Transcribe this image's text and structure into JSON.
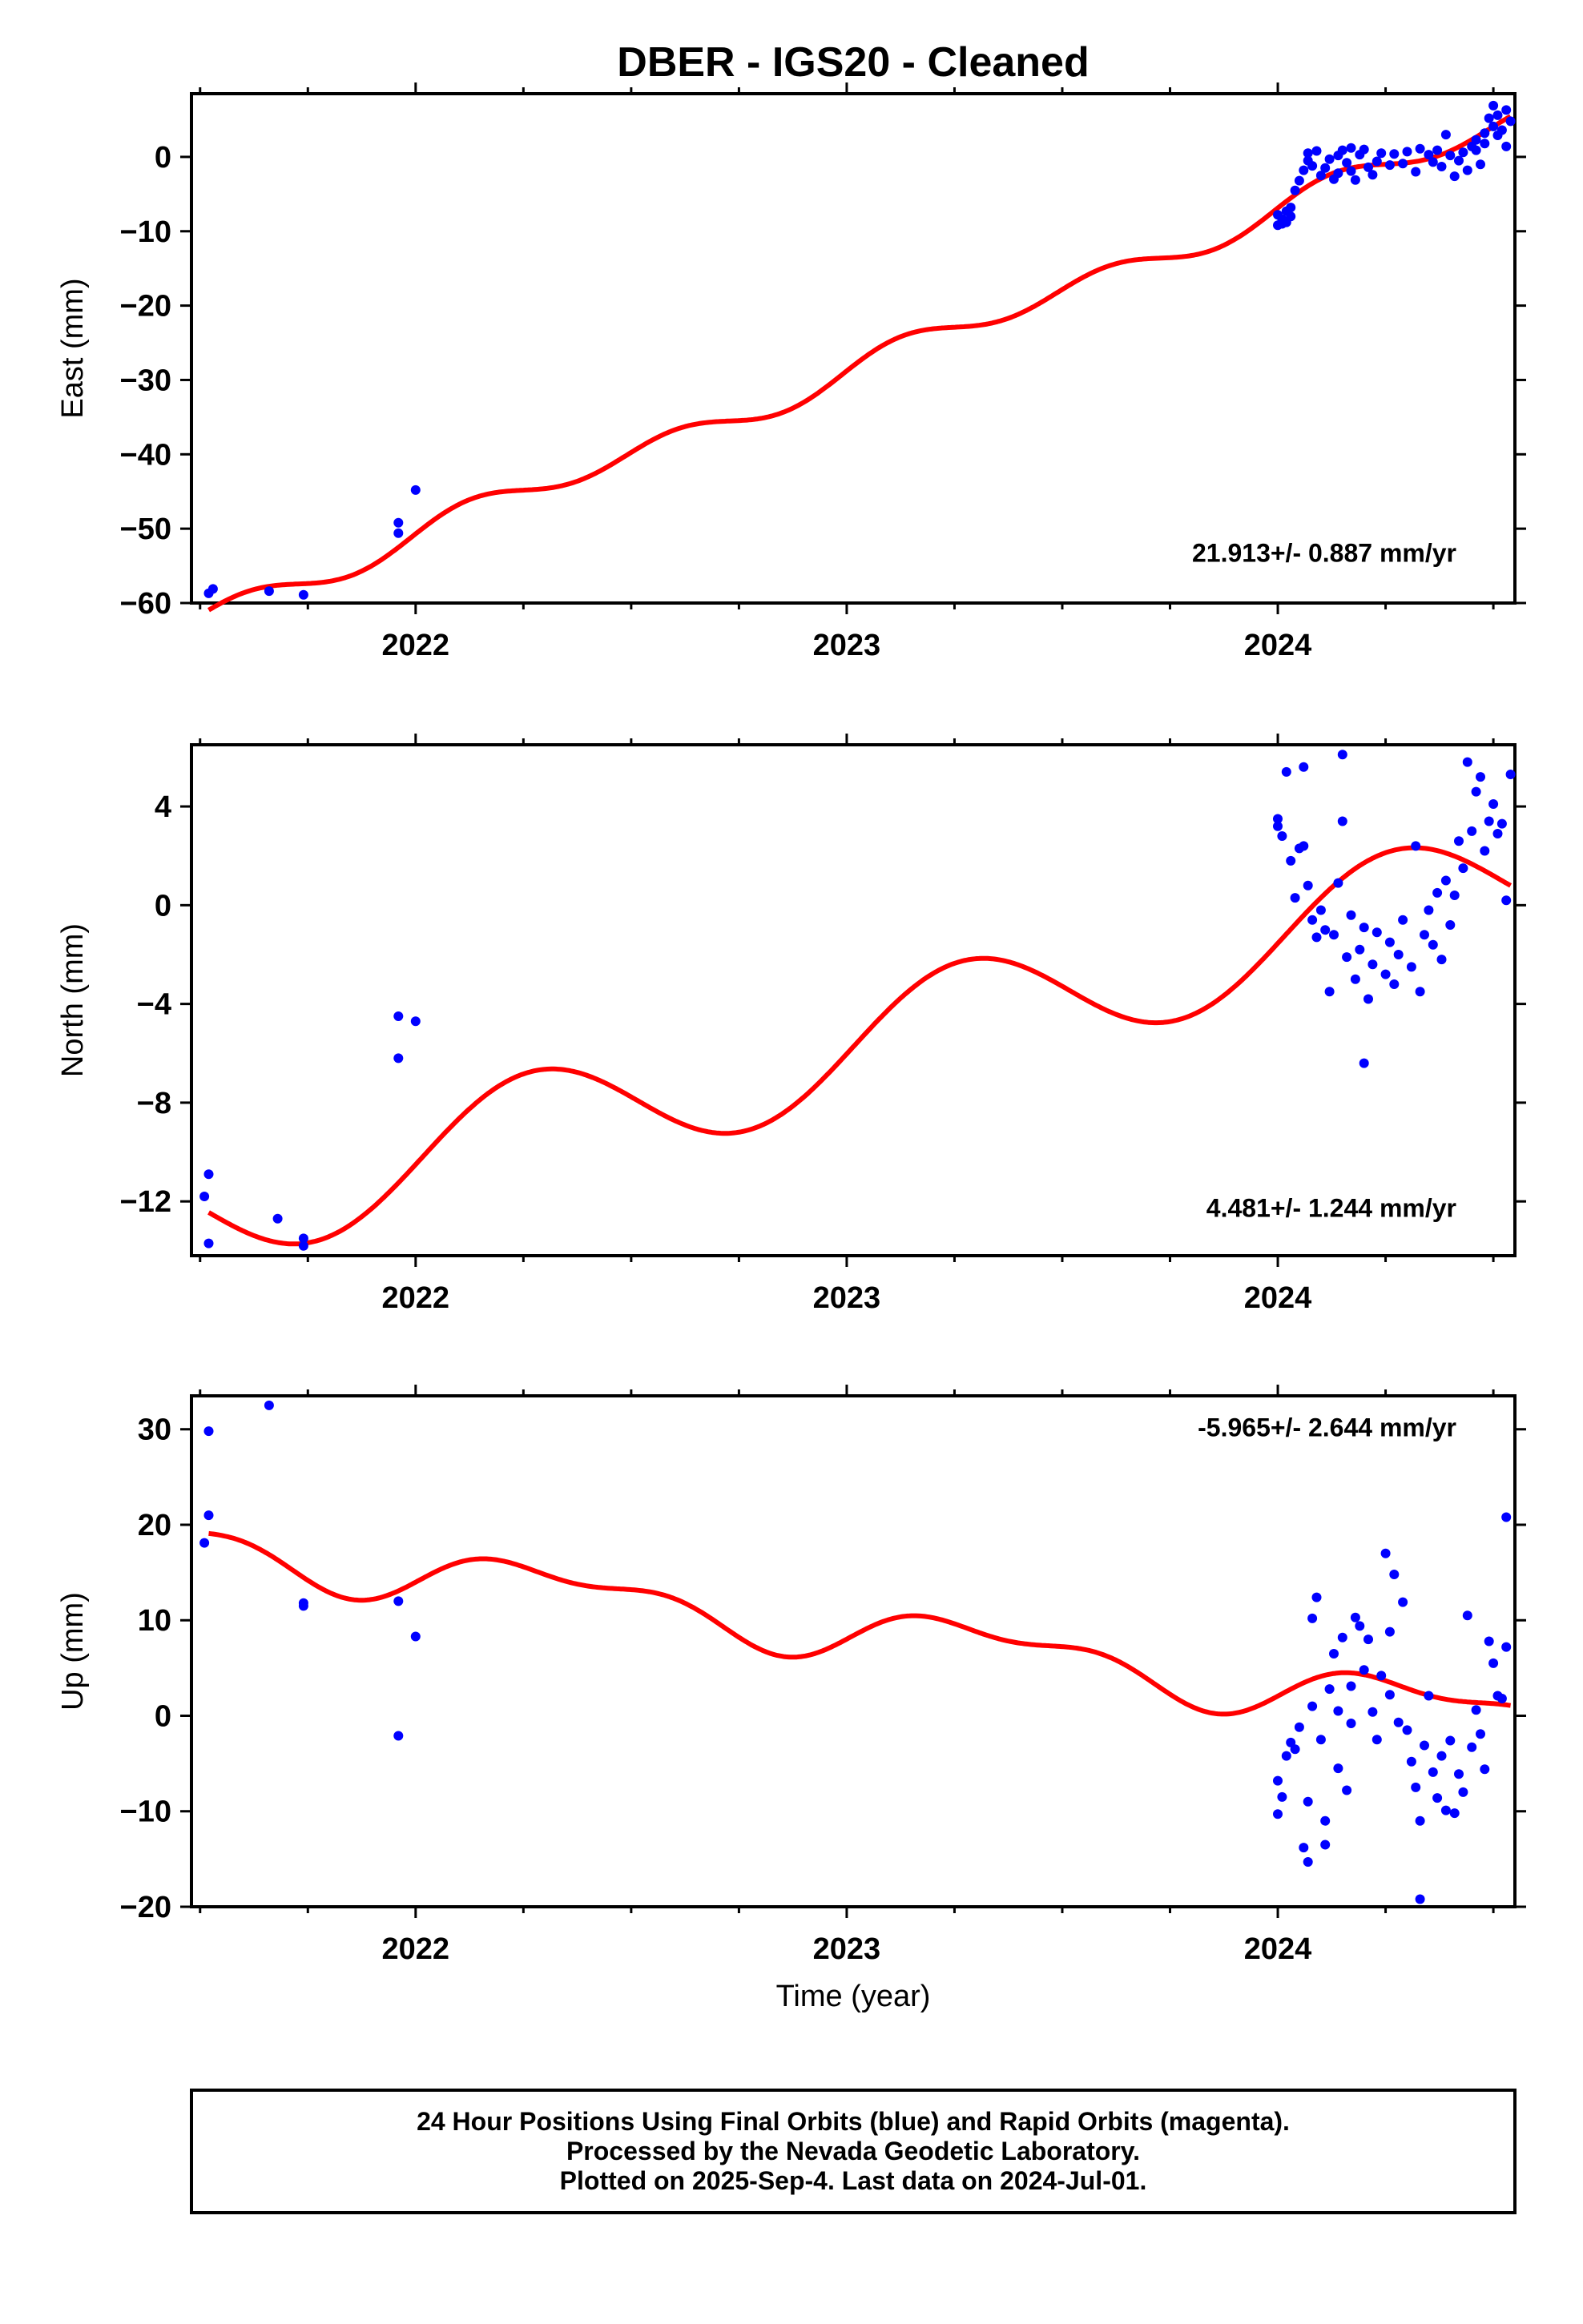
{
  "chart_data": [
    {
      "type": "scatter",
      "panel": "east",
      "title": "DBER  - IGS20 - Cleaned",
      "ylabel": "East (mm)",
      "xlabel": "",
      "xlim": [
        2021.48,
        2024.55
      ],
      "ylim": [
        -60,
        8.5
      ],
      "xticks": [
        2022,
        2023,
        2024
      ],
      "yticks": [
        -60,
        -50,
        -40,
        -30,
        -20,
        -10,
        0
      ],
      "rate": "21.913+/- 0.887 mm/yr",
      "series": [
        {
          "name": "Final Orbits",
          "color": "#0000ff",
          "points": [
            [
              2021.52,
              -58.7
            ],
            [
              2021.53,
              -58.1
            ],
            [
              2021.66,
              -58.4
            ],
            [
              2021.74,
              -58.9
            ],
            [
              2021.96,
              -49.2
            ],
            [
              2021.96,
              -50.6
            ],
            [
              2022.0,
              -44.8
            ],
            [
              2024.0,
              -9.2
            ],
            [
              2024.0,
              -7.8
            ],
            [
              2024.01,
              -8.4
            ],
            [
              2024.01,
              -9.0
            ],
            [
              2024.02,
              -7.3
            ],
            [
              2024.02,
              -8.8
            ],
            [
              2024.03,
              -8.0
            ],
            [
              2024.03,
              -6.8
            ],
            [
              2024.04,
              -4.5
            ],
            [
              2024.05,
              -3.2
            ],
            [
              2024.06,
              -1.8
            ],
            [
              2024.07,
              -0.5
            ],
            [
              2024.07,
              0.5
            ],
            [
              2024.08,
              -1.2
            ],
            [
              2024.09,
              0.8
            ],
            [
              2024.1,
              -2.5
            ],
            [
              2024.11,
              -1.5
            ],
            [
              2024.12,
              -0.3
            ],
            [
              2024.13,
              -3.0
            ],
            [
              2024.14,
              -2.2
            ],
            [
              2024.14,
              0.2
            ],
            [
              2024.15,
              0.9
            ],
            [
              2024.16,
              -0.8
            ],
            [
              2024.17,
              1.2
            ],
            [
              2024.17,
              -1.9
            ],
            [
              2024.18,
              -3.1
            ],
            [
              2024.19,
              0.3
            ],
            [
              2024.2,
              1.0
            ],
            [
              2024.21,
              -1.4
            ],
            [
              2024.22,
              -2.4
            ],
            [
              2024.23,
              -0.6
            ],
            [
              2024.24,
              0.5
            ],
            [
              2024.26,
              -1.1
            ],
            [
              2024.27,
              0.4
            ],
            [
              2024.29,
              -0.9
            ],
            [
              2024.3,
              0.7
            ],
            [
              2024.32,
              -2.0
            ],
            [
              2024.33,
              1.1
            ],
            [
              2024.35,
              0.3
            ],
            [
              2024.36,
              -0.7
            ],
            [
              2024.37,
              0.9
            ],
            [
              2024.38,
              -1.3
            ],
            [
              2024.39,
              3.0
            ],
            [
              2024.4,
              0.2
            ],
            [
              2024.41,
              -2.6
            ],
            [
              2024.42,
              -0.5
            ],
            [
              2024.43,
              0.6
            ],
            [
              2024.44,
              -1.8
            ],
            [
              2024.45,
              1.4
            ],
            [
              2024.46,
              2.3
            ],
            [
              2024.46,
              0.9
            ],
            [
              2024.47,
              -1.0
            ],
            [
              2024.48,
              3.2
            ],
            [
              2024.48,
              1.8
            ],
            [
              2024.49,
              5.2
            ],
            [
              2024.5,
              4.1
            ],
            [
              2024.5,
              6.9
            ],
            [
              2024.51,
              2.9
            ],
            [
              2024.51,
              5.6
            ],
            [
              2024.52,
              3.6
            ],
            [
              2024.53,
              6.3
            ],
            [
              2024.53,
              1.4
            ],
            [
              2024.54,
              4.8
            ]
          ]
        },
        {
          "name": "Model",
          "color": "#ff0000",
          "kind": "fit",
          "trend_mm_yr": 21.913,
          "offset_mm": -0.5,
          "t0": 2024.3,
          "terms": [
            [
              0.8,
              0.0
            ],
            [
              1.5,
              0.2
            ]
          ]
        }
      ]
    },
    {
      "type": "scatter",
      "panel": "north",
      "ylabel": "North (mm)",
      "xlabel": "",
      "xlim": [
        2021.48,
        2024.55
      ],
      "ylim": [
        -14.2,
        6.5
      ],
      "xticks": [
        2022,
        2023,
        2024
      ],
      "yticks": [
        -12,
        -8,
        -4,
        0,
        4
      ],
      "rate": "4.481+/- 1.244 mm/yr",
      "series": [
        {
          "name": "Final Orbits",
          "color": "#0000ff",
          "points": [
            [
              2021.51,
              -11.8
            ],
            [
              2021.52,
              -10.9
            ],
            [
              2021.52,
              -13.7
            ],
            [
              2021.68,
              -12.7
            ],
            [
              2021.74,
              -13.5
            ],
            [
              2021.74,
              -13.8
            ],
            [
              2021.96,
              -4.5
            ],
            [
              2021.96,
              -6.2
            ],
            [
              2022.0,
              -4.7
            ],
            [
              2024.0,
              3.5
            ],
            [
              2024.0,
              3.2
            ],
            [
              2024.01,
              2.8
            ],
            [
              2024.02,
              5.4
            ],
            [
              2024.03,
              1.8
            ],
            [
              2024.04,
              0.3
            ],
            [
              2024.05,
              2.3
            ],
            [
              2024.06,
              5.6
            ],
            [
              2024.06,
              2.4
            ],
            [
              2024.07,
              0.8
            ],
            [
              2024.08,
              -0.6
            ],
            [
              2024.09,
              -1.3
            ],
            [
              2024.1,
              -0.2
            ],
            [
              2024.11,
              -1.0
            ],
            [
              2024.12,
              -3.5
            ],
            [
              2024.13,
              -1.2
            ],
            [
              2024.14,
              0.9
            ],
            [
              2024.15,
              6.1
            ],
            [
              2024.15,
              3.4
            ],
            [
              2024.16,
              -2.1
            ],
            [
              2024.17,
              -0.4
            ],
            [
              2024.18,
              -3.0
            ],
            [
              2024.19,
              -1.8
            ],
            [
              2024.2,
              -0.9
            ],
            [
              2024.2,
              -6.4
            ],
            [
              2024.21,
              -3.8
            ],
            [
              2024.22,
              -2.4
            ],
            [
              2024.23,
              -1.1
            ],
            [
              2024.25,
              -2.8
            ],
            [
              2024.26,
              -1.5
            ],
            [
              2024.27,
              -3.2
            ],
            [
              2024.28,
              -2.0
            ],
            [
              2024.29,
              -0.6
            ],
            [
              2024.31,
              -2.5
            ],
            [
              2024.32,
              2.4
            ],
            [
              2024.33,
              -3.5
            ],
            [
              2024.34,
              -1.2
            ],
            [
              2024.35,
              -0.2
            ],
            [
              2024.36,
              -1.6
            ],
            [
              2024.37,
              0.5
            ],
            [
              2024.38,
              -2.2
            ],
            [
              2024.39,
              1.0
            ],
            [
              2024.4,
              -0.8
            ],
            [
              2024.41,
              0.4
            ],
            [
              2024.42,
              2.6
            ],
            [
              2024.43,
              1.5
            ],
            [
              2024.44,
              5.8
            ],
            [
              2024.45,
              3.0
            ],
            [
              2024.46,
              4.6
            ],
            [
              2024.47,
              5.2
            ],
            [
              2024.48,
              2.2
            ],
            [
              2024.49,
              3.4
            ],
            [
              2024.5,
              4.1
            ],
            [
              2024.51,
              2.9
            ],
            [
              2024.52,
              3.3
            ],
            [
              2024.53,
              0.2
            ],
            [
              2024.54,
              5.3
            ]
          ]
        },
        {
          "name": "Model",
          "color": "#ff0000",
          "kind": "fit",
          "trend_mm_yr": 4.481,
          "offset_mm": 0.05,
          "t0": 2024.3,
          "terms": [
            [
              2.3,
              -0.25
            ],
            [
              0.0,
              0.0
            ]
          ]
        }
      ]
    },
    {
      "type": "scatter",
      "panel": "up",
      "ylabel": "Up (mm)",
      "xlabel": "Time (year)",
      "xlim": [
        2021.48,
        2024.55
      ],
      "ylim": [
        -20,
        33.5
      ],
      "xticks": [
        2022,
        2023,
        2024
      ],
      "yticks": [
        -20,
        -10,
        0,
        10,
        20,
        30
      ],
      "rate": "-5.965+/- 2.644 mm/yr",
      "series": [
        {
          "name": "Final Orbits",
          "color": "#0000ff",
          "points": [
            [
              2021.51,
              18.1
            ],
            [
              2021.52,
              29.8
            ],
            [
              2021.52,
              21.0
            ],
            [
              2021.66,
              32.5
            ],
            [
              2021.74,
              11.8
            ],
            [
              2021.74,
              11.5
            ],
            [
              2021.96,
              12.0
            ],
            [
              2021.96,
              -2.1
            ],
            [
              2022.0,
              8.3
            ],
            [
              2024.0,
              -6.8
            ],
            [
              2024.0,
              -10.3
            ],
            [
              2024.01,
              -8.5
            ],
            [
              2024.02,
              -4.2
            ],
            [
              2024.03,
              -2.8
            ],
            [
              2024.04,
              -3.5
            ],
            [
              2024.05,
              -1.2
            ],
            [
              2024.06,
              -13.8
            ],
            [
              2024.07,
              -15.3
            ],
            [
              2024.07,
              -9.0
            ],
            [
              2024.08,
              10.2
            ],
            [
              2024.08,
              1.0
            ],
            [
              2024.09,
              12.4
            ],
            [
              2024.1,
              -2.5
            ],
            [
              2024.11,
              -13.5
            ],
            [
              2024.11,
              -11.0
            ],
            [
              2024.12,
              2.8
            ],
            [
              2024.13,
              6.5
            ],
            [
              2024.14,
              -5.5
            ],
            [
              2024.14,
              0.5
            ],
            [
              2024.15,
              8.2
            ],
            [
              2024.16,
              -7.8
            ],
            [
              2024.17,
              3.1
            ],
            [
              2024.17,
              -0.8
            ],
            [
              2024.18,
              10.3
            ],
            [
              2024.19,
              9.4
            ],
            [
              2024.2,
              4.8
            ],
            [
              2024.21,
              8.0
            ],
            [
              2024.22,
              0.4
            ],
            [
              2024.23,
              -2.5
            ],
            [
              2024.24,
              4.2
            ],
            [
              2024.25,
              17.0
            ],
            [
              2024.26,
              8.8
            ],
            [
              2024.26,
              2.2
            ],
            [
              2024.27,
              14.8
            ],
            [
              2024.28,
              -0.7
            ],
            [
              2024.29,
              11.9
            ],
            [
              2024.3,
              -1.5
            ],
            [
              2024.31,
              -4.8
            ],
            [
              2024.32,
              -7.5
            ],
            [
              2024.33,
              -19.2
            ],
            [
              2024.33,
              -11.0
            ],
            [
              2024.34,
              -3.1
            ],
            [
              2024.35,
              2.1
            ],
            [
              2024.36,
              -5.9
            ],
            [
              2024.37,
              -8.6
            ],
            [
              2024.38,
              -4.2
            ],
            [
              2024.39,
              -9.9
            ],
            [
              2024.4,
              -2.6
            ],
            [
              2024.41,
              -10.2
            ],
            [
              2024.42,
              -6.1
            ],
            [
              2024.43,
              -8.0
            ],
            [
              2024.44,
              10.5
            ],
            [
              2024.45,
              -3.3
            ],
            [
              2024.46,
              0.6
            ],
            [
              2024.47,
              -1.9
            ],
            [
              2024.48,
              -5.6
            ],
            [
              2024.49,
              7.8
            ],
            [
              2024.5,
              5.5
            ],
            [
              2024.51,
              2.1
            ],
            [
              2024.52,
              1.8
            ],
            [
              2024.53,
              7.2
            ],
            [
              2024.53,
              20.8
            ]
          ]
        },
        {
          "name": "Model",
          "color": "#ff0000",
          "kind": "fit",
          "trend_mm_yr": -5.965,
          "offset_mm": 1.27,
          "t0": 2024.3,
          "terms": [
            [
              2.2,
              -1.1
            ],
            [
              1.3,
              0.1
            ]
          ]
        }
      ]
    }
  ],
  "footer": {
    "line1": "24 Hour Positions Using Final Orbits (blue) and Rapid Orbits (magenta).",
    "line2": "Processed by the Nevada Geodetic Laboratory.",
    "line3": "Plotted on 2025-Sep-4. Last data on 2024-Jul-01."
  }
}
